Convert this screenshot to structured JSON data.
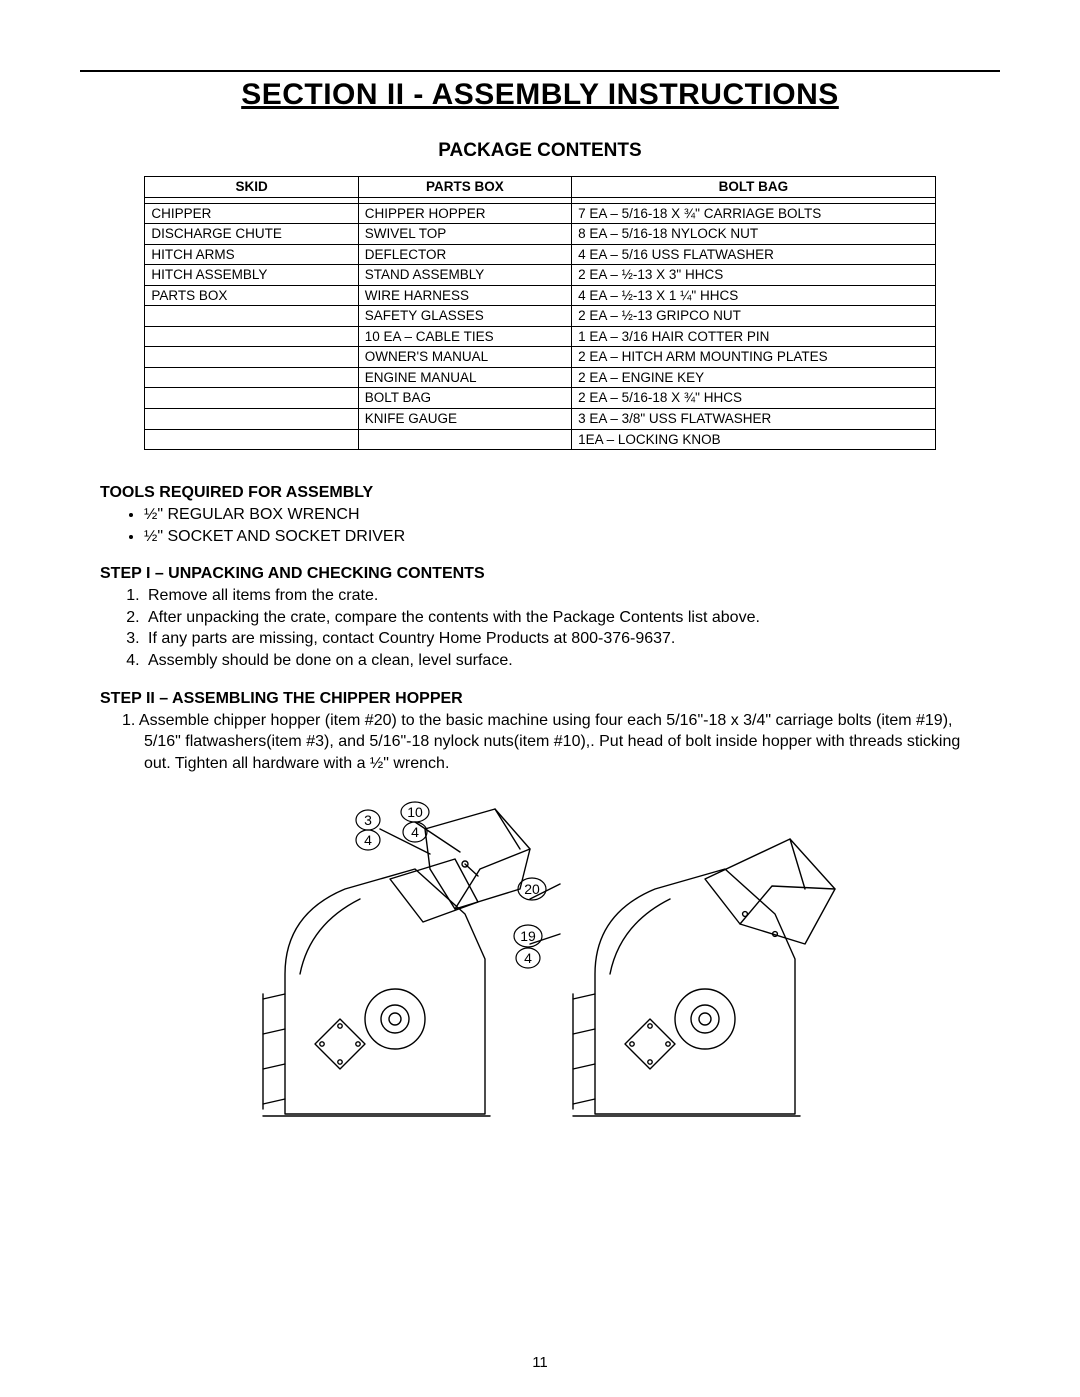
{
  "page_number": "11",
  "section_title": "SECTION II - ASSEMBLY INSTRUCTIONS",
  "subtitle": "PACKAGE CONTENTS",
  "table": {
    "headers": [
      "SKID",
      "PARTS BOX",
      "BOLT BAG"
    ],
    "rows": [
      [
        "CHIPPER",
        "CHIPPER HOPPER",
        "7 EA – 5/16-18 X ¾\" CARRIAGE BOLTS"
      ],
      [
        "DISCHARGE CHUTE",
        "SWIVEL TOP",
        "8 EA – 5/16-18 NYLOCK NUT"
      ],
      [
        "HITCH ARMS",
        "DEFLECTOR",
        "4 EA – 5/16 USS FLATWASHER"
      ],
      [
        "HITCH ASSEMBLY",
        "STAND ASSEMBLY",
        "2 EA – ½-13 X 3\" HHCS"
      ],
      [
        "PARTS BOX",
        "WIRE HARNESS",
        "4 EA – ½-13 X 1 ¼\" HHCS"
      ],
      [
        "",
        "SAFETY GLASSES",
        "2 EA – ½-13 GRIPCO NUT"
      ],
      [
        "",
        "10 EA – CABLE TIES",
        "1 EA – 3/16 HAIR COTTER PIN"
      ],
      [
        "",
        "OWNER'S MANUAL",
        "2 EA – HITCH ARM MOUNTING PLATES"
      ],
      [
        "",
        "ENGINE MANUAL",
        "2 EA – ENGINE KEY"
      ],
      [
        "",
        "BOLT BAG",
        "2 EA – 5/16-18 X ¾\" HHCS"
      ],
      [
        "",
        "KNIFE GAUGE",
        "3 EA – 3/8\" USS FLATWASHER"
      ],
      [
        "",
        "",
        "1EA – LOCKING KNOB"
      ]
    ]
  },
  "tools_heading": "TOOLS REQUIRED FOR ASSEMBLY",
  "tools": [
    "½\" REGULAR BOX WRENCH",
    "½\" SOCKET AND SOCKET DRIVER"
  ],
  "step1_heading": "STEP I – UNPACKING AND CHECKING CONTENTS",
  "step1_items": [
    "Remove all items from the crate.",
    "After unpacking the crate, compare the contents with the Package Contents list above.",
    "If any parts are missing, contact Country Home Products at 800-376-9637.",
    "Assembly should be done on a clean, level surface."
  ],
  "step2_heading": "STEP II – ASSEMBLING THE CHIPPER HOPPER",
  "step2_text": "1.  Assemble chipper hopper (item #20) to the basic machine using four each 5/16\"-18 x 3/4\" carriage bolts (item #19), 5/16\" flatwashers(item #3),  and 5/16\"-18 nylock nuts(item #10),.  Put head of bolt inside hopper with threads sticking out.  Tighten all hardware with a ½\" wrench.",
  "diagram": {
    "stroke": "#000000",
    "stroke_width": 1.4,
    "fill": "#ffffff",
    "font_size": 14,
    "labels": {
      "l3": "3",
      "l4a": "4",
      "l4b": "4",
      "l10": "10",
      "l4c": "4",
      "l20": "20",
      "l19": "19"
    }
  }
}
